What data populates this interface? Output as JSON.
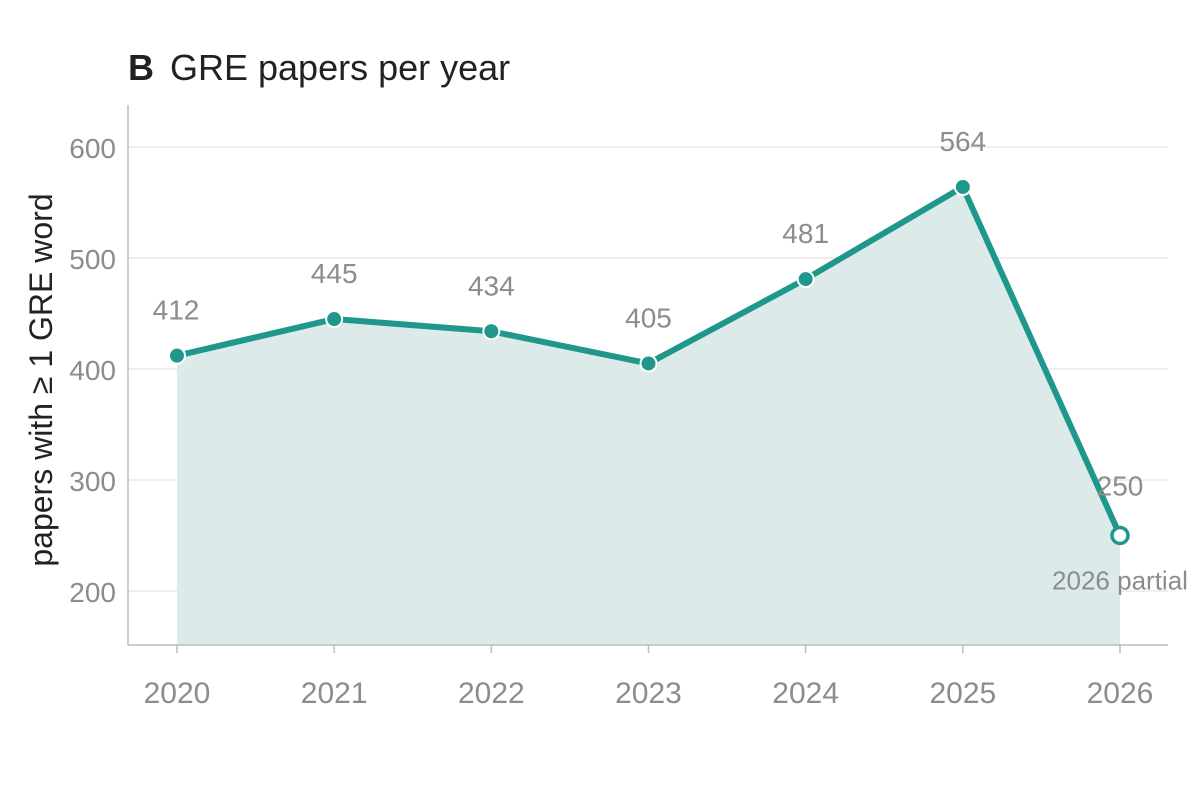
{
  "panel": {
    "letter": "B",
    "title": "GRE papers per year"
  },
  "colors": {
    "line": "#1f978b",
    "fill": "#dcebea",
    "marker_fill": "#1f978b",
    "marker_stroke": "#ffffff",
    "partial_marker_fill": "#ffffff",
    "gridline": "#e9e9e9",
    "axis": "#bdbdbd",
    "tick_text": "#8c8c8c",
    "label_text": "#8c8c8c",
    "title_text": "#222222"
  },
  "chart_data": {
    "type": "area",
    "title": "GRE papers per year",
    "xlabel": "",
    "ylabel": "papers with ≥ 1 GRE word",
    "x": [
      "2020",
      "2021",
      "2022",
      "2023",
      "2024",
      "2025",
      "2026"
    ],
    "series": [
      {
        "values": [
          412,
          445,
          434,
          405,
          481,
          564,
          250
        ],
        "data_labels": [
          "412",
          "445",
          "434",
          "405",
          "481",
          "564",
          "250"
        ],
        "partial_last_point": true
      }
    ],
    "ylim": [
      150,
      630
    ],
    "yticks": [
      200,
      300,
      400,
      500,
      600
    ],
    "ytick_labels": [
      "200",
      "300",
      "400",
      "500",
      "600"
    ],
    "grid": true,
    "annotations": [
      {
        "x": "2026",
        "text": "2026 partial"
      }
    ]
  }
}
